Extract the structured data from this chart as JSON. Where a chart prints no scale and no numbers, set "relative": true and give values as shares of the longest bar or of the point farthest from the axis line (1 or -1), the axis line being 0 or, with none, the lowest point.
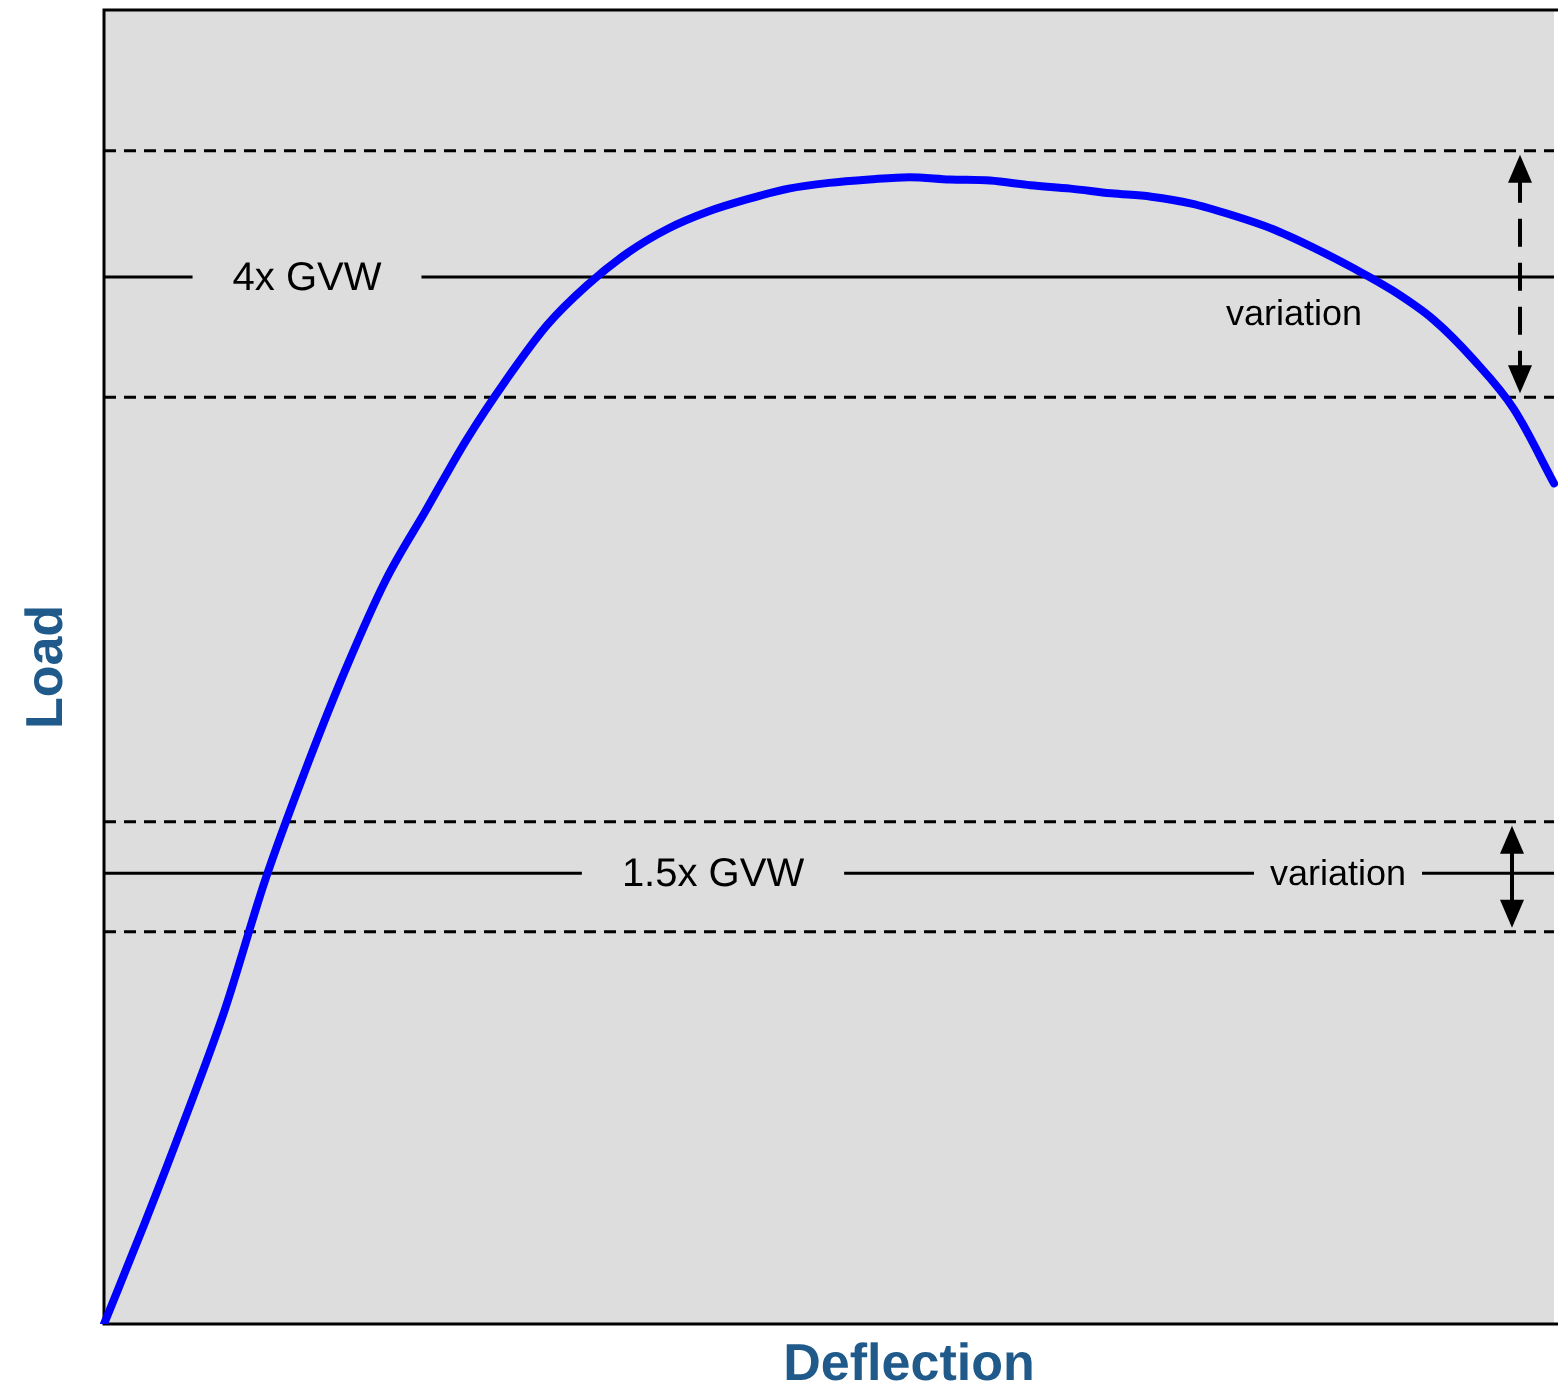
{
  "chart_data": {
    "type": "line",
    "xlabel": "Deflection",
    "ylabel": "Load",
    "relative": true,
    "legend": false,
    "marker": "none",
    "line_style": "solid",
    "annotations": [
      "variation",
      "variation"
    ],
    "categories": [
      null,
      null,
      null,
      null,
      null,
      null,
      null,
      null,
      null,
      null,
      null,
      null,
      null,
      null,
      null,
      null,
      null,
      null,
      null,
      null,
      null,
      null,
      null,
      null,
      null,
      null,
      null,
      null,
      null,
      null,
      null,
      null,
      null,
      null,
      null,
      null,
      null
    ],
    "series": [
      {
        "color": "#0000ff",
        "values": [
          0,
          0.087,
          0.178,
          0.274,
          0.387,
          0.483,
          0.571,
          0.649,
          0.71,
          0.771,
          0.824,
          0.871,
          0.906,
          0.934,
          0.955,
          0.97,
          0.981,
          0.99,
          0.995,
          0.998,
          1,
          0.998,
          0.997,
          0.993,
          0.99,
          0.986,
          0.983,
          0.977,
          0.967,
          0.955,
          0.939,
          0.921,
          0.901,
          0.876,
          0.841,
          0.798,
          0.733
        ]
      }
    ],
    "ref_lines": [
      {
        "axis": "y",
        "value": 1.023,
        "color": "#000000",
        "line_style": "dashed"
      },
      {
        "axis": "y",
        "value": 0.913,
        "label": "4x GVW",
        "color": "#000000",
        "line_style": "solid"
      },
      {
        "axis": "y",
        "value": 0.808,
        "color": "#000000",
        "line_style": "dashed"
      },
      {
        "axis": "y",
        "value": 0.438,
        "color": "#000000",
        "line_style": "dashed"
      },
      {
        "axis": "y",
        "value": 0.393,
        "label": "1.5x GVW",
        "color": "#000000",
        "line_style": "solid"
      },
      {
        "axis": "y",
        "value": 0.342,
        "color": "#000000",
        "line_style": "dashed"
      }
    ]
  }
}
